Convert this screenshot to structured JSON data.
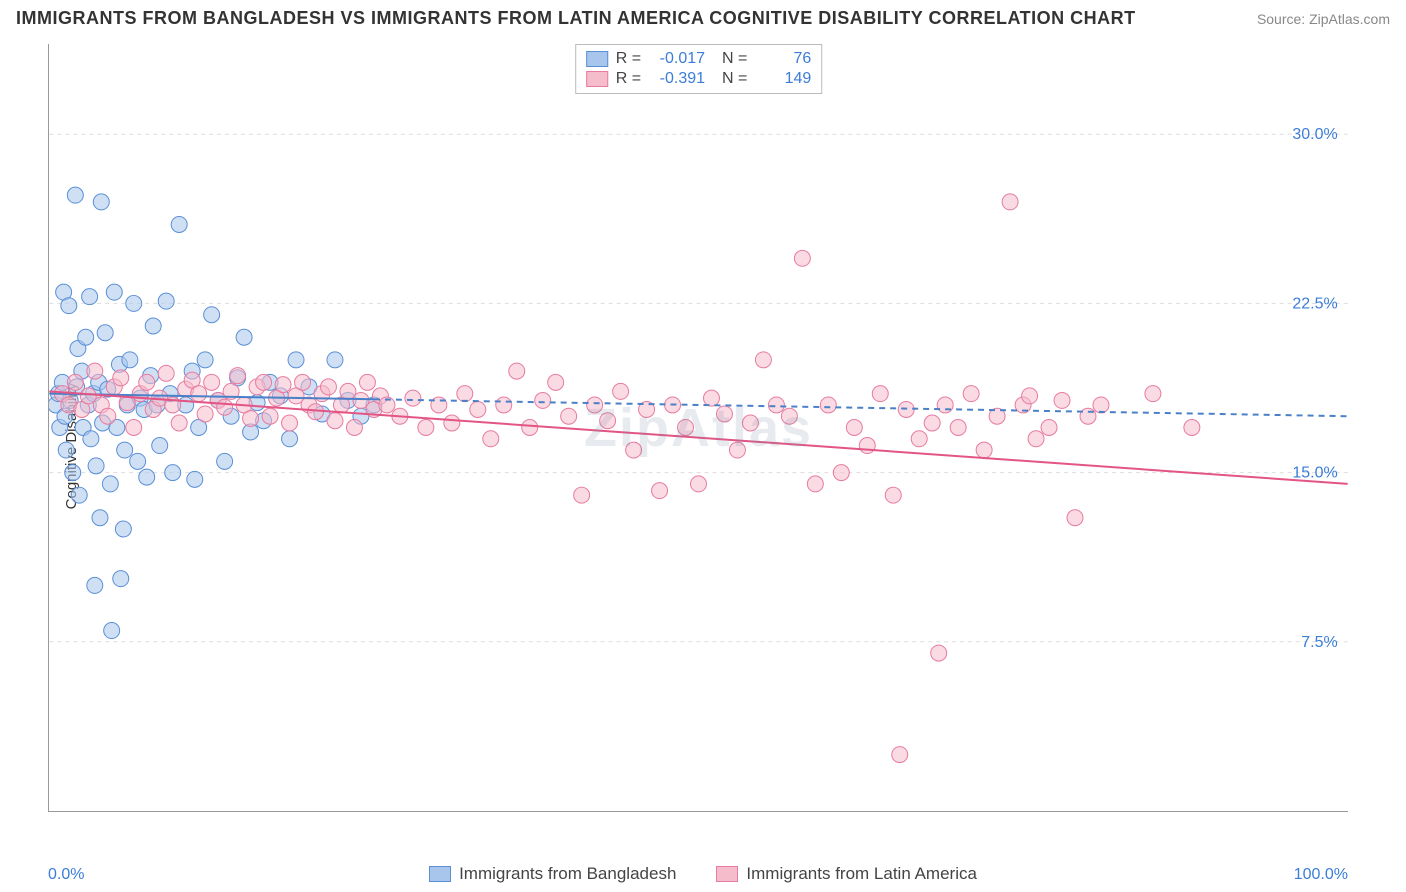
{
  "title": "IMMIGRANTS FROM BANGLADESH VS IMMIGRANTS FROM LATIN AMERICA COGNITIVE DISABILITY CORRELATION CHART",
  "source": "Source: ZipAtlas.com",
  "watermark": "ZipAtlas",
  "chart": {
    "type": "scatter",
    "ylabel": "Cognitive Disability",
    "xlim": [
      0,
      100
    ],
    "ylim": [
      0,
      34
    ],
    "x_ticks_pct": [
      0,
      10,
      20,
      30,
      40,
      50,
      60,
      70,
      80,
      90,
      100
    ],
    "y_gridlines": [
      7.5,
      15.0,
      22.5,
      30.0
    ],
    "y_tick_labels": [
      "7.5%",
      "15.0%",
      "22.5%",
      "30.0%"
    ],
    "x_left_label": "0.0%",
    "x_right_label": "100.0%",
    "background_color": "#ffffff",
    "grid_color": "#dddddd",
    "axis_color": "#999999",
    "marker_radius": 8,
    "marker_opacity": 0.55,
    "series": [
      {
        "id": "bangladesh",
        "label": "Immigrants from Bangladesh",
        "fill_color": "#a8c6ec",
        "stroke_color": "#5a8fd6",
        "R": "-0.017",
        "N": "76",
        "regression": {
          "x1": 0,
          "y1": 18.5,
          "x2": 100,
          "y2": 17.5,
          "solid_until_x": 25,
          "color": "#4a80c8",
          "width": 2
        },
        "points": [
          [
            0.5,
            18.0
          ],
          [
            0.7,
            18.5
          ],
          [
            0.8,
            17.0
          ],
          [
            1.0,
            19.0
          ],
          [
            1.1,
            23.0
          ],
          [
            1.2,
            17.5
          ],
          [
            1.3,
            16.0
          ],
          [
            1.5,
            22.4
          ],
          [
            1.6,
            18.2
          ],
          [
            1.8,
            15.0
          ],
          [
            2.0,
            27.3
          ],
          [
            2.1,
            18.8
          ],
          [
            2.2,
            20.5
          ],
          [
            2.3,
            14.0
          ],
          [
            2.5,
            19.5
          ],
          [
            2.6,
            17.0
          ],
          [
            2.8,
            21.0
          ],
          [
            3.0,
            18.0
          ],
          [
            3.1,
            22.8
          ],
          [
            3.2,
            16.5
          ],
          [
            3.4,
            18.5
          ],
          [
            3.5,
            10.0
          ],
          [
            3.6,
            15.3
          ],
          [
            3.8,
            19.0
          ],
          [
            4.0,
            27.0
          ],
          [
            4.1,
            17.2
          ],
          [
            4.3,
            21.2
          ],
          [
            4.5,
            18.7
          ],
          [
            4.7,
            14.5
          ],
          [
            4.8,
            8.0
          ],
          [
            5.0,
            23.0
          ],
          [
            5.2,
            17.0
          ],
          [
            5.4,
            19.8
          ],
          [
            5.5,
            10.3
          ],
          [
            5.8,
            16.0
          ],
          [
            6.0,
            18.0
          ],
          [
            6.2,
            20.0
          ],
          [
            6.5,
            22.5
          ],
          [
            6.8,
            15.5
          ],
          [
            7.0,
            18.3
          ],
          [
            7.3,
            17.8
          ],
          [
            7.5,
            14.8
          ],
          [
            7.8,
            19.3
          ],
          [
            8.0,
            21.5
          ],
          [
            8.3,
            18.0
          ],
          [
            8.5,
            16.2
          ],
          [
            9.0,
            22.6
          ],
          [
            9.3,
            18.5
          ],
          [
            9.5,
            15.0
          ],
          [
            10.0,
            26.0
          ],
          [
            10.5,
            18.0
          ],
          [
            11.0,
            19.5
          ],
          [
            11.2,
            14.7
          ],
          [
            11.5,
            17.0
          ],
          [
            12.0,
            20.0
          ],
          [
            12.5,
            22.0
          ],
          [
            13.0,
            18.2
          ],
          [
            13.5,
            15.5
          ],
          [
            14.0,
            17.5
          ],
          [
            14.5,
            19.2
          ],
          [
            15.0,
            21.0
          ],
          [
            15.5,
            16.8
          ],
          [
            16.0,
            18.1
          ],
          [
            16.5,
            17.3
          ],
          [
            17.0,
            19.0
          ],
          [
            17.8,
            18.4
          ],
          [
            18.5,
            16.5
          ],
          [
            19.0,
            20.0
          ],
          [
            20.0,
            18.8
          ],
          [
            21.0,
            17.6
          ],
          [
            22.0,
            20.0
          ],
          [
            23.0,
            18.2
          ],
          [
            24.0,
            17.5
          ],
          [
            25.0,
            18.0
          ],
          [
            3.9,
            13.0
          ],
          [
            5.7,
            12.5
          ]
        ]
      },
      {
        "id": "latin_america",
        "label": "Immigrants from Latin America",
        "fill_color": "#f5bccc",
        "stroke_color": "#e77ba0",
        "R": "-0.391",
        "N": "149",
        "regression": {
          "x1": 0,
          "y1": 18.6,
          "x2": 100,
          "y2": 14.5,
          "solid_until_x": 100,
          "color": "#e25584",
          "width": 2
        },
        "points": [
          [
            1.0,
            18.5
          ],
          [
            1.5,
            18.0
          ],
          [
            2.0,
            19.0
          ],
          [
            2.5,
            17.8
          ],
          [
            3.0,
            18.4
          ],
          [
            3.5,
            19.5
          ],
          [
            4.0,
            18.0
          ],
          [
            4.5,
            17.5
          ],
          [
            5.0,
            18.8
          ],
          [
            5.5,
            19.2
          ],
          [
            6.0,
            18.1
          ],
          [
            6.5,
            17.0
          ],
          [
            7.0,
            18.5
          ],
          [
            7.5,
            19.0
          ],
          [
            8.0,
            17.8
          ],
          [
            8.5,
            18.3
          ],
          [
            9.0,
            19.4
          ],
          [
            9.5,
            18.0
          ],
          [
            10.0,
            17.2
          ],
          [
            10.5,
            18.7
          ],
          [
            11.0,
            19.1
          ],
          [
            11.5,
            18.5
          ],
          [
            12.0,
            17.6
          ],
          [
            12.5,
            19.0
          ],
          [
            13.0,
            18.2
          ],
          [
            13.5,
            17.9
          ],
          [
            14.0,
            18.6
          ],
          [
            14.5,
            19.3
          ],
          [
            15.0,
            18.0
          ],
          [
            15.5,
            17.4
          ],
          [
            16.0,
            18.8
          ],
          [
            16.5,
            19.0
          ],
          [
            17.0,
            17.5
          ],
          [
            17.5,
            18.3
          ],
          [
            18.0,
            18.9
          ],
          [
            18.5,
            17.2
          ],
          [
            19.0,
            18.4
          ],
          [
            19.5,
            19.0
          ],
          [
            20.0,
            18.0
          ],
          [
            20.5,
            17.7
          ],
          [
            21.0,
            18.5
          ],
          [
            21.5,
            18.8
          ],
          [
            22.0,
            17.3
          ],
          [
            22.5,
            18.0
          ],
          [
            23.0,
            18.6
          ],
          [
            23.5,
            17.0
          ],
          [
            24.0,
            18.2
          ],
          [
            24.5,
            19.0
          ],
          [
            25.0,
            17.8
          ],
          [
            25.5,
            18.4
          ],
          [
            26.0,
            18.0
          ],
          [
            27.0,
            17.5
          ],
          [
            28.0,
            18.3
          ],
          [
            29.0,
            17.0
          ],
          [
            30.0,
            18.0
          ],
          [
            31.0,
            17.2
          ],
          [
            32.0,
            18.5
          ],
          [
            33.0,
            17.8
          ],
          [
            34.0,
            16.5
          ],
          [
            35.0,
            18.0
          ],
          [
            36.0,
            19.5
          ],
          [
            37.0,
            17.0
          ],
          [
            38.0,
            18.2
          ],
          [
            39.0,
            19.0
          ],
          [
            40.0,
            17.5
          ],
          [
            41.0,
            14.0
          ],
          [
            42.0,
            18.0
          ],
          [
            43.0,
            17.3
          ],
          [
            44.0,
            18.6
          ],
          [
            45.0,
            16.0
          ],
          [
            46.0,
            17.8
          ],
          [
            47.0,
            14.2
          ],
          [
            48.0,
            18.0
          ],
          [
            49.0,
            17.0
          ],
          [
            50.0,
            14.5
          ],
          [
            51.0,
            18.3
          ],
          [
            52.0,
            17.6
          ],
          [
            53.0,
            16.0
          ],
          [
            54.0,
            17.2
          ],
          [
            55.0,
            20.0
          ],
          [
            56.0,
            18.0
          ],
          [
            57.0,
            17.5
          ],
          [
            58.0,
            24.5
          ],
          [
            59.0,
            14.5
          ],
          [
            60.0,
            18.0
          ],
          [
            61.0,
            15.0
          ],
          [
            62.0,
            17.0
          ],
          [
            63.0,
            16.2
          ],
          [
            64.0,
            18.5
          ],
          [
            65.0,
            14.0
          ],
          [
            66.0,
            17.8
          ],
          [
            67.0,
            16.5
          ],
          [
            68.0,
            17.2
          ],
          [
            68.5,
            7.0
          ],
          [
            69.0,
            18.0
          ],
          [
            70.0,
            17.0
          ],
          [
            71.0,
            18.5
          ],
          [
            72.0,
            16.0
          ],
          [
            73.0,
            17.5
          ],
          [
            74.0,
            27.0
          ],
          [
            75.0,
            18.0
          ],
          [
            75.5,
            18.4
          ],
          [
            76.0,
            16.5
          ],
          [
            77.0,
            17.0
          ],
          [
            78.0,
            18.2
          ],
          [
            79.0,
            13.0
          ],
          [
            80.0,
            17.5
          ],
          [
            81.0,
            18.0
          ],
          [
            85.0,
            18.5
          ],
          [
            88.0,
            17.0
          ],
          [
            65.5,
            2.5
          ]
        ]
      }
    ]
  }
}
